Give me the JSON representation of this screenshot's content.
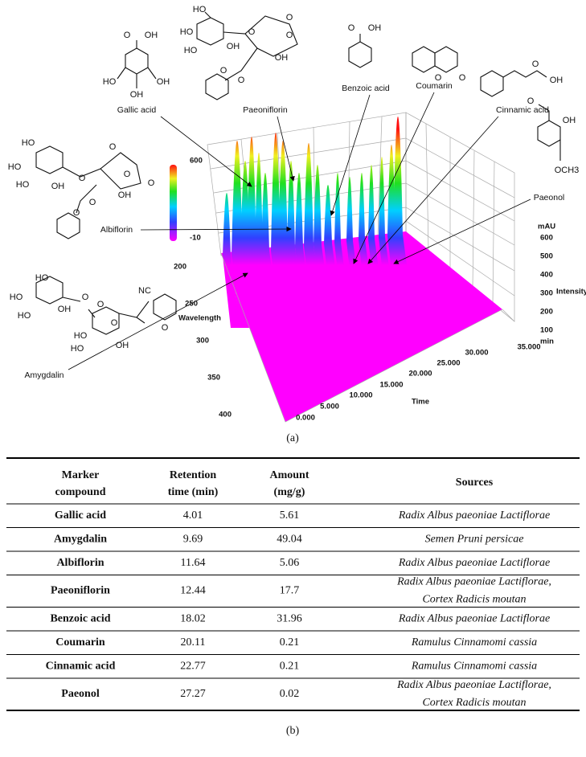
{
  "figure_a": {
    "compounds": [
      {
        "name": "Gallic acid",
        "atoms": [
          "O",
          "OH",
          "HO",
          "OH",
          "OH"
        ]
      },
      {
        "name": "Paeoniflorin",
        "atoms": [
          "HO",
          "HO",
          "HO",
          "OH",
          "O",
          "O",
          "O",
          "OH",
          "O",
          "O"
        ]
      },
      {
        "name": "Benzoic acid",
        "atoms": [
          "O",
          "OH"
        ]
      },
      {
        "name": "Coumarin",
        "atoms": [
          "O",
          "O"
        ]
      },
      {
        "name": "Cinnamic acid",
        "atoms": [
          "O",
          "OH"
        ]
      },
      {
        "name": "Paeonol",
        "atoms": [
          "O",
          "OH",
          "OCH3"
        ]
      },
      {
        "name": "Albiflorin",
        "atoms": [
          "HO",
          "HO",
          "HO",
          "OH",
          "O",
          "O",
          "O",
          "O",
          "OH",
          "O",
          "O"
        ]
      },
      {
        "name": "Amygdalin",
        "atoms": [
          "HO",
          "HO",
          "HO",
          "OH",
          "O",
          "O",
          "NC",
          "O",
          "HO",
          "HO",
          "OH",
          "O"
        ]
      }
    ],
    "colorbar": {
      "max": "600",
      "min": "-10"
    },
    "wavelength_axis": {
      "label": "Wavelength",
      "ticks": [
        "200",
        "250",
        "300",
        "350",
        "400"
      ]
    },
    "time_axis": {
      "label": "Time",
      "ticks": [
        "0.000",
        "5.000",
        "10.000",
        "15.000",
        "20.000",
        "25.000",
        "30.000",
        "35.000"
      ]
    },
    "intensity_axis": {
      "label": "Intensity",
      "unit": "mAU",
      "time_unit": "min",
      "ticks": [
        "600",
        "500",
        "400",
        "300",
        "200",
        "100"
      ]
    },
    "caption": "(a)"
  },
  "table": {
    "header": [
      [
        "Marker",
        "compound"
      ],
      [
        "Retention",
        "time (min)"
      ],
      [
        "Amount",
        "(mg/g)"
      ],
      [
        "Sources"
      ]
    ],
    "rows": [
      [
        "Gallic acid",
        4.01,
        5.61,
        [
          "Radix Albus paeoniae Lactiflorae"
        ]
      ],
      [
        "Amygdalin",
        9.69,
        49.04,
        [
          "Semen Pruni persicae"
        ]
      ],
      [
        "Albiflorin",
        11.64,
        5.06,
        [
          "Radix Albus paeoniae Lactiflorae"
        ]
      ],
      [
        "Paeoniflorin",
        12.44,
        17.7,
        [
          "Radix Albus paeoniae Lactiflorae,",
          "Cortex Radicis moutan"
        ]
      ],
      [
        "Benzoic acid",
        18.02,
        31.96,
        [
          "Radix Albus paeoniae Lactiflorae"
        ]
      ],
      [
        "Coumarin",
        20.11,
        0.21,
        [
          "Ramulus Cinnamomi cassia"
        ]
      ],
      [
        "Cinnamic acid",
        22.77,
        0.21,
        [
          "Ramulus Cinnamomi cassia"
        ]
      ],
      [
        "Paeonol",
        27.27,
        0.02,
        [
          "Radix Albus paeoniae Lactiflorae,",
          "Cortex Radicis moutan"
        ]
      ]
    ],
    "caption": "(b)"
  }
}
